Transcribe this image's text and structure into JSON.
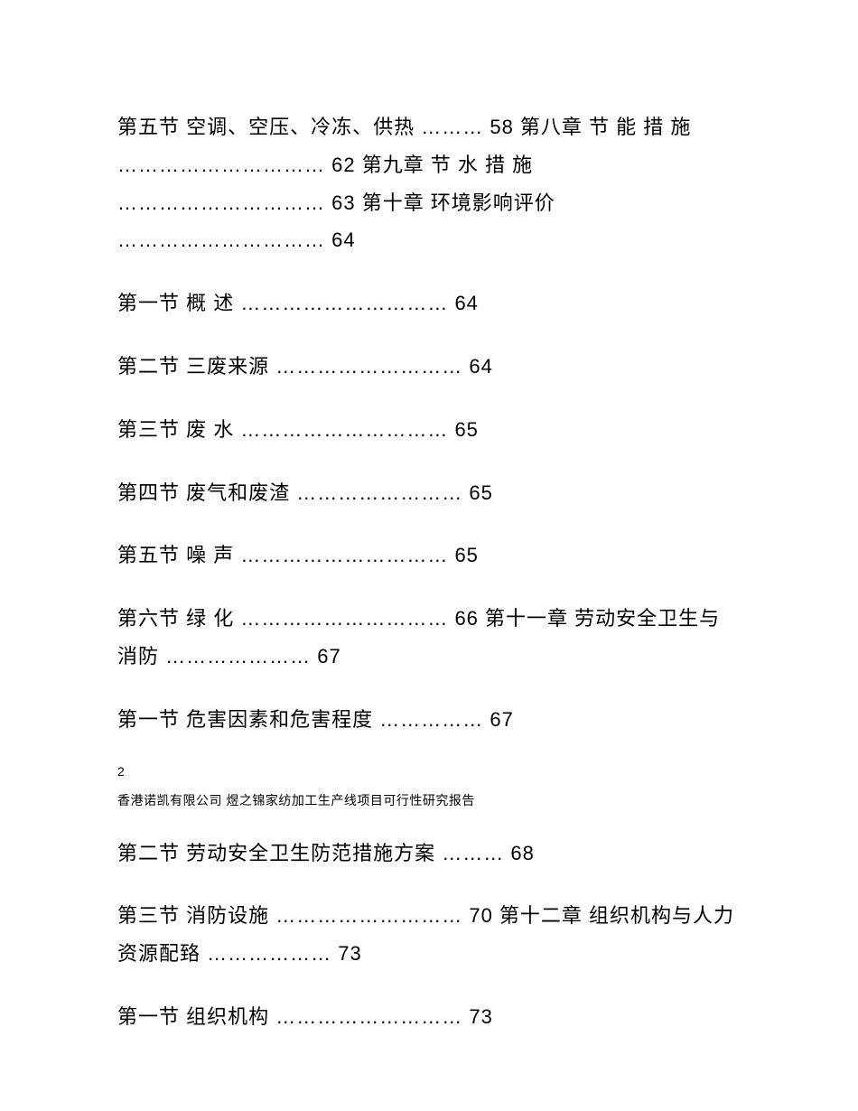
{
  "toc": {
    "entry1": "第五节 空调、空压、冷冻、供热 ……… 58 第八章 节 能 措 施 ………………………… 62 第九章 节 水 措 施 ………………………… 63 第十章 环境影响评价 ………………………… 64",
    "entry2": "第一节 概 述 ………………………… 64",
    "entry3": "第二节 三废来源 ……………………… 64",
    "entry4": "第三节 废 水 ………………………… 65",
    "entry5": "第四节 废气和废渣 …………………… 65",
    "entry6": "第五节 噪 声 ………………………… 65",
    "entry7": "第六节 绿 化 ………………………… 66 第十一章 劳动安全卫生与消防 ………………… 67",
    "entry8": "第一节 危害因素和危害程度 …………… 67",
    "entry9": "第二节 劳动安全卫生防范措施方案 ……… 68",
    "entry10": "第三节 消防设施 ……………………… 70 第十二章 组织机构与人力资源配臵 ……………… 73",
    "entry11": "第一节 组织机构 ……………………… 73"
  },
  "page_number": "2",
  "footer": "香港诺凯有限公司 煜之锦家纺加工生产线项目可行性研究报告"
}
